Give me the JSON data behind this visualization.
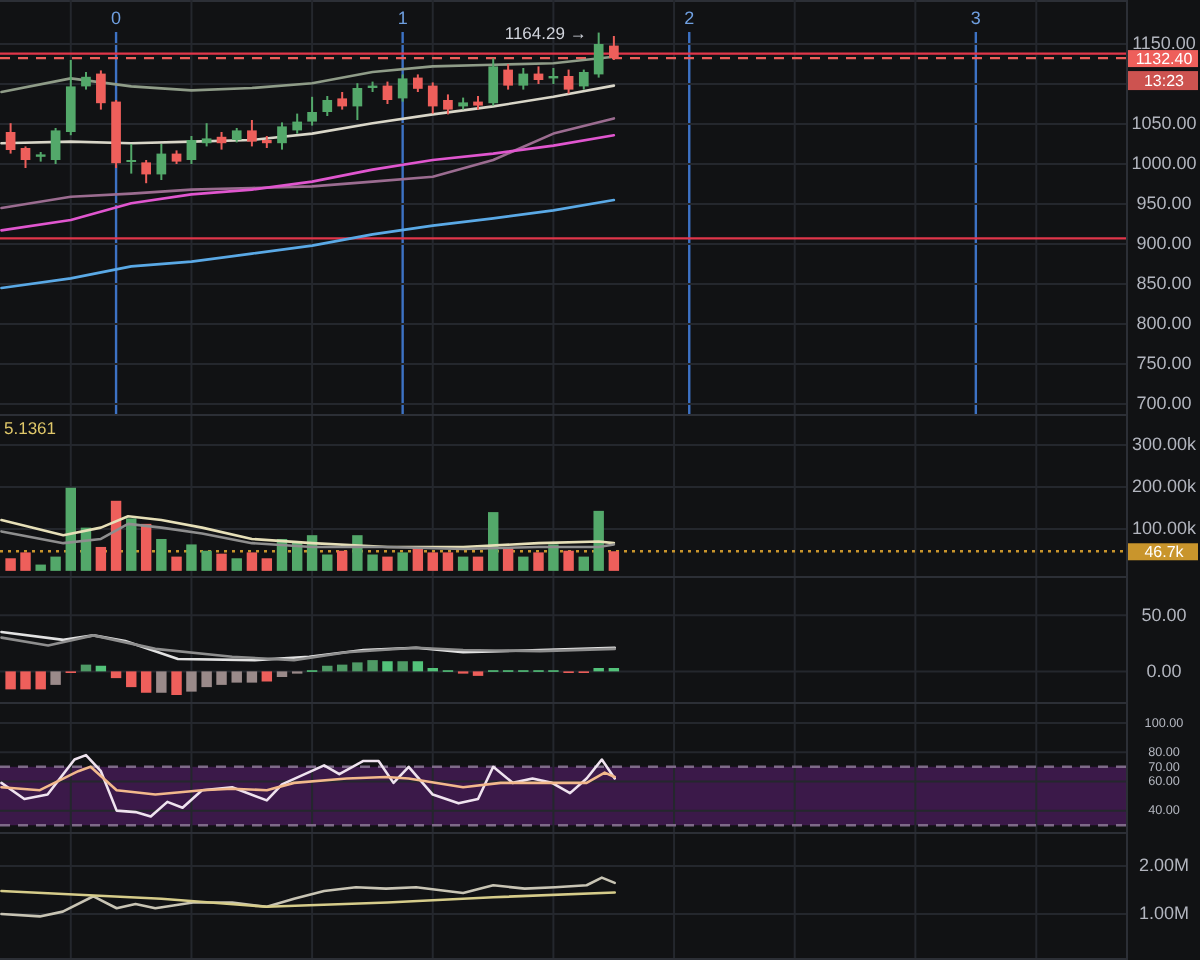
{
  "chart_data": [
    {
      "type": "candlestick",
      "x": [
        -0.368,
        -0.316,
        -0.263,
        -0.211,
        -0.158,
        -0.105,
        -0.053,
        0,
        0.053,
        0.105,
        0.158,
        0.211,
        0.263,
        0.316,
        0.368,
        0.421,
        0.474,
        0.526,
        0.579,
        0.632,
        0.684,
        0.737,
        0.789,
        0.842,
        0.895,
        0.947,
        1,
        1.053,
        1.105,
        1.158,
        1.211,
        1.263,
        1.316,
        1.368,
        1.421,
        1.474,
        1.526,
        1.579,
        1.632,
        1.684,
        1.737
      ],
      "ohlc": [
        [
          1040,
          1051,
          1013,
          1017.5
        ],
        [
          1020,
          1022,
          995,
          1005
        ],
        [
          1009,
          1015,
          1003,
          1012
        ],
        [
          1005,
          1045,
          1000,
          1042
        ],
        [
          1040,
          1130,
          1036,
          1097
        ],
        [
          1097,
          1115,
          1093,
          1109
        ],
        [
          1113,
          1117,
          1068,
          1076
        ],
        [
          1078,
          1080,
          995,
          1001
        ],
        [
          1003,
          1025,
          988,
          1005
        ],
        [
          1002,
          1005,
          976,
          987
        ],
        [
          987,
          1025,
          980,
          1013
        ],
        [
          1013,
          1017,
          1000,
          1003
        ],
        [
          1005,
          1035,
          1000,
          1030
        ],
        [
          1026,
          1051,
          1022,
          1032
        ],
        [
          1034,
          1040,
          1018,
          1026
        ],
        [
          1030,
          1045,
          1027,
          1042
        ],
        [
          1042,
          1055,
          1022,
          1028
        ],
        [
          1030,
          1035,
          1020,
          1026
        ],
        [
          1026,
          1052,
          1018,
          1047
        ],
        [
          1042,
          1063,
          1038,
          1053
        ],
        [
          1053,
          1084,
          1048,
          1065
        ],
        [
          1065,
          1085,
          1060,
          1080
        ],
        [
          1082,
          1090,
          1068,
          1072
        ],
        [
          1072,
          1101,
          1055,
          1095
        ],
        [
          1095,
          1103,
          1090,
          1098
        ],
        [
          1098,
          1103,
          1075,
          1080
        ],
        [
          1082,
          1112,
          1078,
          1107
        ],
        [
          1108,
          1112,
          1090,
          1094
        ],
        [
          1098,
          1102,
          1063,
          1072
        ],
        [
          1080,
          1087,
          1062,
          1068
        ],
        [
          1072,
          1083,
          1068,
          1077
        ],
        [
          1078,
          1085,
          1068,
          1073
        ],
        [
          1076,
          1132,
          1073,
          1122
        ],
        [
          1118,
          1125,
          1093,
          1098
        ],
        [
          1098,
          1120,
          1093,
          1113
        ],
        [
          1113,
          1122,
          1100,
          1105
        ],
        [
          1107,
          1120,
          1100,
          1110
        ],
        [
          1110,
          1118,
          1088,
          1093
        ],
        [
          1097,
          1118,
          1093,
          1115
        ],
        [
          1112,
          1164.29,
          1108,
          1150
        ],
        [
          1148,
          1160,
          1130,
          1132.4
        ]
      ],
      "colors": [
        "#ee5f5b",
        "#ee5f5b",
        "#53a86a",
        "#53a86a",
        "#53a86a",
        "#53a86a",
        "#ee5f5b",
        "#ee5f5b",
        "#53a86a",
        "#ee5f5b",
        "#53a86a",
        "#ee5f5b",
        "#53a86a",
        "#53a86a",
        "#ee5f5b",
        "#53a86a",
        "#ee5f5b",
        "#ee5f5b",
        "#53a86a",
        "#53a86a",
        "#53a86a",
        "#53a86a",
        "#ee5f5b",
        "#53a86a",
        "#53a86a",
        "#ee5f5b",
        "#53a86a",
        "#ee5f5b",
        "#ee5f5b",
        "#ee5f5b",
        "#53a86a",
        "#ee5f5b",
        "#53a86a",
        "#ee5f5b",
        "#53a86a",
        "#ee5f5b",
        "#53a86a",
        "#ee5f5b",
        "#53a86a",
        "#53a86a",
        "#ee5f5b"
      ],
      "series": [
        {
          "type": "line",
          "color": "#8f9c88",
          "x": [
            -0.4,
            -0.158,
            0.053,
            0.263,
            0.474,
            0.684,
            0.895,
            1.105,
            1.316,
            1.526,
            1.737
          ],
          "values": [
            1090,
            1107,
            1097,
            1092,
            1095,
            1101,
            1115,
            1122,
            1124,
            1126,
            1134
          ]
        },
        {
          "type": "line",
          "color": "#d9d6c8",
          "x": [
            -0.4,
            -0.158,
            0.053,
            0.263,
            0.474,
            0.684,
            0.895,
            1.105,
            1.316,
            1.526,
            1.737
          ],
          "values": [
            1026,
            1028,
            1026,
            1028,
            1030,
            1038,
            1051,
            1062,
            1072,
            1084,
            1098
          ]
        },
        {
          "type": "line",
          "color": "#9b6c90",
          "x": [
            -0.4,
            -0.158,
            0.053,
            0.263,
            0.474,
            0.684,
            0.895,
            1.105,
            1.316,
            1.526,
            1.737
          ],
          "values": [
            945,
            959,
            963,
            968,
            970,
            972,
            978,
            984,
            1005,
            1038,
            1057
          ]
        },
        {
          "type": "line",
          "color": "#e056cf",
          "x": [
            -0.4,
            -0.158,
            0.053,
            0.263,
            0.474,
            0.684,
            0.895,
            1.105,
            1.316,
            1.526,
            1.737
          ],
          "values": [
            917,
            930,
            951,
            962,
            968,
            978,
            993,
            1005,
            1013,
            1023,
            1036
          ]
        },
        {
          "type": "line",
          "color": "#5aa9e6",
          "x": [
            -0.4,
            -0.158,
            0.053,
            0.263,
            0.474,
            0.684,
            0.895,
            1.105,
            1.316,
            1.526,
            1.737
          ],
          "values": [
            845,
            857,
            872,
            878,
            888,
            898,
            912,
            923,
            932,
            942,
            955
          ]
        }
      ],
      "xlim": [
        -0.405,
        3.524
      ],
      "xticks": [
        {
          "value": -0.158,
          "label": null
        },
        {
          "value": 0,
          "label": "0"
        },
        {
          "value": 0.263,
          "label": null
        },
        {
          "value": 0.684,
          "label": null
        },
        {
          "value": 1,
          "label": "1"
        },
        {
          "value": 1.105,
          "label": null
        },
        {
          "value": 1.526,
          "label": null
        },
        {
          "value": 1.947,
          "label": null
        },
        {
          "value": 2,
          "label": "2"
        },
        {
          "value": 2.368,
          "label": null
        },
        {
          "value": 2.789,
          "label": null
        },
        {
          "value": 3,
          "label": "3"
        },
        {
          "value": 3.211,
          "label": null
        }
      ],
      "ylim": [
        685,
        1205
      ],
      "yticks": [
        {
          "value": 700,
          "label": "700.00"
        },
        {
          "value": 750,
          "label": "750.00"
        },
        {
          "value": 800,
          "label": "800.00"
        },
        {
          "value": 850,
          "label": "850.00"
        },
        {
          "value": 900,
          "label": "900.00"
        },
        {
          "value": 950,
          "label": "950.00"
        },
        {
          "value": 1000,
          "label": "1000.00"
        },
        {
          "value": 1050,
          "label": "1050.00"
        },
        {
          "value": 1100,
          "label": null
        },
        {
          "value": 1150,
          "label": "1150.00"
        }
      ],
      "grid": true,
      "ref_lines": [
        {
          "axis": "y",
          "value": 1138,
          "color": "#e0364a"
        },
        {
          "axis": "y",
          "value": 1132.4,
          "label": "1132.40",
          "color": "#ee5f5b",
          "line_style": "dashed"
        },
        {
          "axis": "y",
          "value": 907,
          "color": "#e0364a"
        }
      ],
      "annotations": [
        {
          "text": "1164.29 →",
          "x": 1.684,
          "y": 1164.29
        },
        "13:23"
      ]
    },
    {
      "type": "bar",
      "x": [
        -0.368,
        -0.316,
        -0.263,
        -0.211,
        -0.158,
        -0.105,
        -0.053,
        0,
        0.053,
        0.105,
        0.158,
        0.211,
        0.263,
        0.316,
        0.368,
        0.421,
        0.474,
        0.526,
        0.579,
        0.632,
        0.684,
        0.737,
        0.789,
        0.842,
        0.895,
        0.947,
        1,
        1.053,
        1.105,
        1.158,
        1.211,
        1.263,
        1.316,
        1.368,
        1.421,
        1.474,
        1.526,
        1.579,
        1.632,
        1.684,
        1.737
      ],
      "series": [
        {
          "values": [
            30,
            44,
            15,
            34,
            198,
            103,
            57,
            167,
            125,
            112,
            76,
            34,
            63,
            48,
            41,
            30,
            44,
            30,
            76,
            67,
            85,
            39,
            48,
            85,
            39,
            34,
            44,
            57,
            44,
            44,
            34,
            34,
            140,
            57,
            34,
            44,
            63,
            48,
            34,
            143,
            46.7
          ],
          "colors": [
            "#ee5f5b",
            "#ee5f5b",
            "#53a86a",
            "#53a86a",
            "#53a86a",
            "#53a86a",
            "#ee5f5b",
            "#ee5f5b",
            "#53a86a",
            "#ee5f5b",
            "#53a86a",
            "#ee5f5b",
            "#53a86a",
            "#53a86a",
            "#ee5f5b",
            "#53a86a",
            "#ee5f5b",
            "#ee5f5b",
            "#53a86a",
            "#53a86a",
            "#53a86a",
            "#53a86a",
            "#ee5f5b",
            "#53a86a",
            "#53a86a",
            "#ee5f5b",
            "#53a86a",
            "#ee5f5b",
            "#ee5f5b",
            "#ee5f5b",
            "#53a86a",
            "#ee5f5b",
            "#53a86a",
            "#ee5f5b",
            "#53a86a",
            "#ee5f5b",
            "#53a86a",
            "#ee5f5b",
            "#53a86a",
            "#53a86a",
            "#ee5f5b"
          ]
        },
        {
          "type": "line",
          "color": "#e6dfb8",
          "x": [
            -0.4,
            -0.184,
            -0.053,
            0.042,
            0.158,
            0.3,
            0.474,
            0.684,
            0.947,
            1.211,
            1.474,
            1.684,
            1.737
          ],
          "values": [
            121,
            85,
            103,
            130,
            121,
            103,
            76,
            66,
            57,
            57,
            66,
            70,
            66
          ]
        },
        {
          "type": "line",
          "color": "#8e8e8e",
          "x": [
            -0.4,
            -0.184,
            -0.053,
            0.042,
            0.158,
            0.3,
            0.474,
            0.684,
            0.947,
            1.211,
            1.474,
            1.684,
            1.737
          ],
          "values": [
            94,
            66,
            76,
            112,
            103,
            89,
            66,
            57,
            57,
            52,
            57,
            57,
            63
          ]
        }
      ],
      "xlim": [
        -0.405,
        3.524
      ],
      "xticks": [
        {
          "value": -0.158,
          "label": null
        },
        {
          "value": 0.263,
          "label": null
        },
        {
          "value": 0.684,
          "label": null
        },
        {
          "value": 1.105,
          "label": null
        },
        {
          "value": 1.526,
          "label": null
        },
        {
          "value": 1.947,
          "label": null
        },
        {
          "value": 2.368,
          "label": null
        },
        {
          "value": 2.789,
          "label": null
        },
        {
          "value": 3.211,
          "label": null
        }
      ],
      "ylim": [
        -17,
        369
      ],
      "yticks": [
        {
          "value": 100,
          "label": "100.00k"
        },
        {
          "value": 200,
          "label": "200.00k"
        },
        {
          "value": 300,
          "label": "300.00k"
        }
      ],
      "grid": true,
      "tick_labels": "y",
      "ref_lines": [
        {
          "axis": "y",
          "value": 46.7,
          "label": "46.7k",
          "color": "#c9952c",
          "line_style": "dotted"
        }
      ],
      "annotations": [
        "5.1361"
      ]
    },
    {
      "type": "bar",
      "x": [
        -0.368,
        -0.316,
        -0.263,
        -0.211,
        -0.158,
        -0.105,
        -0.053,
        0,
        0.053,
        0.105,
        0.158,
        0.211,
        0.263,
        0.316,
        0.368,
        0.421,
        0.474,
        0.526,
        0.579,
        0.632,
        0.684,
        0.737,
        0.789,
        0.842,
        0.895,
        0.947,
        1,
        1.053,
        1.105,
        1.158,
        1.211,
        1.263,
        1.316,
        1.368,
        1.421,
        1.474,
        1.526,
        1.579,
        1.632,
        1.684,
        1.737
      ],
      "series": [
        {
          "values": [
            -16,
            -16,
            -16,
            -12,
            -1,
            6,
            5,
            -6,
            -14,
            -19,
            -19,
            -21,
            -18,
            -14,
            -12,
            -10,
            -10,
            -9,
            -5,
            -2,
            1,
            5,
            6,
            8,
            10,
            9,
            9,
            9,
            3,
            1,
            -2,
            -4,
            1,
            1,
            1,
            1,
            1,
            -1,
            -1,
            3,
            3
          ],
          "colors": [
            "#ee5f5b",
            "#ee5f5b",
            "#ee5f5b",
            "#9a8a8a",
            "#ee5f5b",
            "#4f9a66",
            "#53c27a",
            "#ee5f5b",
            "#ee5f5b",
            "#ee5f5b",
            "#9a8a8a",
            "#ee5f5b",
            "#9a8a8a",
            "#9a8a8a",
            "#9a8a8a",
            "#9a8a8a",
            "#9a8a8a",
            "#ee5f5b",
            "#9a8a8a",
            "#9a8a8a",
            "#53c27a",
            "#4f9a66",
            "#4f9a66",
            "#4f9a66",
            "#4f9a66",
            "#53c27a",
            "#4f9a66",
            "#53c27a",
            "#53c27a",
            "#53c27a",
            "#ee5f5b",
            "#ee5f5b",
            "#53c27a",
            "#53c27a",
            "#53c27a",
            "#53c27a",
            "#53c27a",
            "#ee5f5b",
            "#ee5f5b",
            "#53c27a",
            "#53c27a"
          ]
        },
        {
          "type": "line",
          "color": "#e2e2e2",
          "x": [
            -0.4,
            -0.184,
            -0.079,
            0.032,
            0.216,
            0.484,
            0.674,
            0.863,
            1.047,
            1.211,
            1.479,
            1.74
          ],
          "values": [
            35,
            28,
            32,
            27,
            11,
            10,
            13,
            19,
            21,
            17,
            19,
            21
          ]
        },
        {
          "type": "line",
          "color": "#8e8e8e",
          "x": [
            -0.4,
            -0.237,
            -0.079,
            0.137,
            0.405,
            0.621,
            0.805,
            1.047,
            1.211,
            1.479,
            1.74
          ],
          "values": [
            30,
            23,
            32,
            20,
            13,
            10,
            17,
            21,
            19,
            18,
            20
          ]
        }
      ],
      "xlim": [
        -0.405,
        3.524
      ],
      "xticks": [
        {
          "value": -0.158,
          "label": null
        },
        {
          "value": 0.263,
          "label": null
        },
        {
          "value": 0.684,
          "label": null
        },
        {
          "value": 1.105,
          "label": null
        },
        {
          "value": 1.526,
          "label": null
        },
        {
          "value": 1.947,
          "label": null
        },
        {
          "value": 2.368,
          "label": null
        },
        {
          "value": 2.789,
          "label": null
        },
        {
          "value": 3.211,
          "label": null
        }
      ],
      "ylim": [
        -29,
        83
      ],
      "yticks": [
        {
          "value": 0,
          "label": "0.00"
        },
        {
          "value": 50,
          "label": "50.00"
        }
      ],
      "grid": true,
      "tick_labels": "y"
    },
    {
      "type": "line",
      "series": [
        {
          "color": "#efe3ef",
          "x": [
            -0.4,
            -0.32,
            -0.239,
            -0.145,
            -0.105,
            -0.053,
            0.002,
            0.068,
            0.121,
            0.179,
            0.232,
            0.3,
            0.405,
            0.526,
            0.579,
            0.726,
            0.779,
            0.863,
            0.916,
            0.968,
            1.021,
            1.105,
            1.195,
            1.263,
            1.316,
            1.384,
            1.453,
            1.521,
            1.584,
            1.642,
            1.695,
            1.74
          ],
          "values": [
            59,
            48,
            51,
            75,
            78,
            67,
            40,
            39,
            36,
            46,
            42,
            54,
            56,
            47,
            58,
            71,
            65,
            74,
            74,
            59,
            70,
            51,
            45,
            48,
            70,
            59,
            62,
            59,
            52,
            62,
            75,
            62
          ]
        },
        {
          "color": "#f2b98c",
          "x": [
            -0.4,
            -0.266,
            -0.132,
            -0.089,
            0.002,
            0.137,
            0.3,
            0.405,
            0.526,
            0.621,
            0.805,
            0.942,
            1.021,
            1.211,
            1.342,
            1.479,
            1.642,
            1.705,
            1.74
          ],
          "values": [
            56,
            54,
            67,
            70,
            54,
            51,
            54,
            55,
            54,
            59,
            62,
            63,
            62,
            56,
            59,
            59,
            59,
            66,
            63
          ]
        }
      ],
      "xlim": [
        -0.405,
        3.524
      ],
      "xticks": [
        {
          "value": -0.158,
          "label": null
        },
        {
          "value": 0.263,
          "label": null
        },
        {
          "value": 0.684,
          "label": null
        },
        {
          "value": 1.105,
          "label": null
        },
        {
          "value": 1.526,
          "label": null
        },
        {
          "value": 1.947,
          "label": null
        },
        {
          "value": 2.368,
          "label": null
        },
        {
          "value": 2.789,
          "label": null
        },
        {
          "value": 3.211,
          "label": null
        }
      ],
      "ylim": [
        24,
        113
      ],
      "yticks": [
        {
          "value": 40,
          "label": "40.00"
        },
        {
          "value": 60,
          "label": "60.00"
        },
        {
          "value": 70,
          "label": "70.00"
        },
        {
          "value": 80,
          "label": "80.00"
        },
        {
          "value": 100,
          "label": "100.00"
        }
      ],
      "grid": true,
      "tick_labels": "y",
      "bands": [
        {
          "axis": "y",
          "from": 30,
          "to": 70,
          "color": "#3b1949"
        }
      ],
      "ref_lines": [
        {
          "axis": "y",
          "value": 70,
          "color": "#7e6a88",
          "line_style": "dashed"
        },
        {
          "axis": "y",
          "value": 30,
          "color": "#7e6a88",
          "line_style": "dashed"
        }
      ]
    },
    {
      "type": "line",
      "series": [
        {
          "color": "#c8c4b4",
          "x": [
            -0.4,
            -0.266,
            -0.186,
            -0.079,
            0.002,
            0.068,
            0.137,
            0.268,
            0.405,
            0.526,
            0.621,
            0.726,
            0.837,
            0.942,
            1.047,
            1.211,
            1.316,
            1.426,
            1.532,
            1.642,
            1.695,
            1.74
          ],
          "values": [
            1.0,
            0.95,
            1.05,
            1.37,
            1.12,
            1.21,
            1.12,
            1.24,
            1.24,
            1.15,
            1.32,
            1.48,
            1.56,
            1.53,
            1.56,
            1.44,
            1.6,
            1.53,
            1.56,
            1.6,
            1.76,
            1.65
          ]
        },
        {
          "color": "#d6cc8a",
          "x": [
            -0.4,
            0.158,
            0.526,
            0.947,
            1.316,
            1.74
          ],
          "values": [
            1.48,
            1.32,
            1.15,
            1.24,
            1.35,
            1.45
          ]
        }
      ],
      "xlim": [
        -0.405,
        3.524
      ],
      "xticks": [
        {
          "value": -0.158,
          "label": null
        },
        {
          "value": 0.263,
          "label": null
        },
        {
          "value": 0.684,
          "label": null
        },
        {
          "value": 1.105,
          "label": null
        },
        {
          "value": 1.526,
          "label": null
        },
        {
          "value": 1.947,
          "label": null
        },
        {
          "value": 2.368,
          "label": null
        },
        {
          "value": 2.789,
          "label": null
        },
        {
          "value": 3.211,
          "label": null
        }
      ],
      "ylim": [
        0.04,
        2.67
      ],
      "yticks": [
        {
          "value": 1,
          "label": "1.00M"
        },
        {
          "value": 2,
          "label": "2.00M"
        }
      ],
      "grid": true,
      "tick_labels": "y"
    }
  ]
}
